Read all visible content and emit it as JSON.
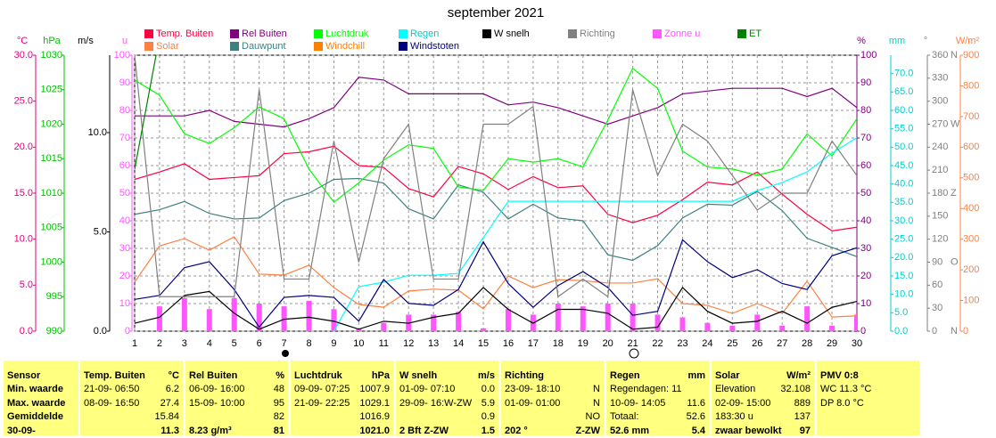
{
  "chart_data": {
    "type": "line",
    "title": "september 2021",
    "x": [
      1,
      2,
      3,
      4,
      5,
      6,
      7,
      8,
      9,
      10,
      11,
      12,
      13,
      14,
      15,
      16,
      17,
      18,
      19,
      20,
      21,
      22,
      23,
      24,
      25,
      26,
      27,
      28,
      29,
      30
    ],
    "xlim": [
      1,
      30
    ],
    "grid": true,
    "axes": {
      "temp": {
        "label": "°C",
        "color": "#e0007f",
        "lim": [
          0,
          30
        ],
        "ticks": [
          {
            "value": 0,
            "label": "0.0"
          },
          {
            "value": 5,
            "label": "5.0"
          },
          {
            "value": 10,
            "label": "10.0"
          },
          {
            "value": 15,
            "label": "15.0"
          },
          {
            "value": 20,
            "label": "20.0"
          },
          {
            "value": 25,
            "label": "25.0"
          },
          {
            "value": 30,
            "label": "30.0"
          }
        ]
      },
      "hpa": {
        "label": "hPa",
        "color": "#00c000",
        "lim": [
          990,
          1030
        ],
        "ticks": [
          990,
          995,
          1000,
          1005,
          1010,
          1015,
          1020,
          1025,
          1030
        ]
      },
      "ms": {
        "label": "m/s",
        "color": "#000000",
        "lim": [
          0,
          13.9
        ],
        "ticks": [
          {
            "value": 0,
            "label": "0.0"
          },
          {
            "value": 5,
            "label": "5.0"
          },
          {
            "value": 10,
            "label": "10.0"
          }
        ]
      },
      "u": {
        "label": "u",
        "color": "#ff55ff",
        "lim": [
          0,
          100
        ],
        "ticks": [
          0,
          10,
          20,
          30,
          40,
          50,
          60,
          70,
          80,
          90,
          100
        ]
      },
      "pct": {
        "label": "%",
        "color": "#800080",
        "lim": [
          0,
          100
        ],
        "ticks": [
          0,
          10,
          20,
          30,
          40,
          50,
          60,
          70,
          80,
          90,
          100
        ]
      },
      "mm": {
        "label": "mm",
        "color": "#00d0d0",
        "lim": [
          0,
          75
        ],
        "ticks": [
          {
            "value": 0,
            "label": "0.0"
          },
          {
            "value": 5,
            "label": "5.0"
          },
          {
            "value": 10,
            "label": "10.0"
          },
          {
            "value": 15,
            "label": "15.0"
          },
          {
            "value": 20,
            "label": "20.0"
          },
          {
            "value": 25,
            "label": "25.0"
          },
          {
            "value": 30,
            "label": "30.0"
          },
          {
            "value": 35,
            "label": "35.0"
          },
          {
            "value": 40,
            "label": "40.0"
          },
          {
            "value": 45,
            "label": "45.0"
          },
          {
            "value": 50,
            "label": "50.0"
          },
          {
            "value": 55,
            "label": "55.0"
          },
          {
            "value": 60,
            "label": "60.0"
          },
          {
            "value": 65,
            "label": "65.0"
          },
          {
            "value": 70,
            "label": "70.0"
          }
        ]
      },
      "deg": {
        "label": "°",
        "color": "#808080",
        "lim": [
          0,
          360
        ],
        "ticks": [
          0,
          30,
          60,
          90,
          120,
          150,
          180,
          210,
          240,
          270,
          300,
          330,
          360
        ],
        "compass": [
          {
            "value": 0,
            "label": "N"
          },
          {
            "value": 90,
            "label": "O"
          },
          {
            "value": 180,
            "label": "Z"
          },
          {
            "value": 270,
            "label": "W"
          },
          {
            "value": 360,
            "label": "N"
          }
        ]
      },
      "wm2": {
        "label": "W/m²",
        "color": "#ff8040",
        "lim": [
          0,
          900
        ],
        "ticks": [
          0,
          100,
          200,
          300,
          400,
          500,
          600,
          700,
          800,
          900
        ]
      }
    },
    "series": [
      {
        "name": "Zonne u",
        "color": "#ff55ff",
        "axis": "u",
        "kind": "bar",
        "values": [
          0,
          9,
          12,
          8,
          12,
          10,
          9,
          11,
          8,
          1,
          3,
          6,
          6,
          7,
          1,
          8,
          6,
          10,
          9,
          10,
          10,
          6,
          5,
          3,
          2,
          6,
          2,
          9,
          2,
          6
        ]
      },
      {
        "name": "Temp. Buiten",
        "color": "#ff0040",
        "axis": "temp",
        "kind": "line",
        "values": [
          16.5,
          17.3,
          18.2,
          16.5,
          16.7,
          16.9,
          19.3,
          19.5,
          20.1,
          18.0,
          17.8,
          15.5,
          14.6,
          17.9,
          17.1,
          15.4,
          16.8,
          15.6,
          15.8,
          12.7,
          11.8,
          12.6,
          14.3,
          16.2,
          15.9,
          17.3,
          14.9,
          12.7,
          10.9,
          11.3
        ]
      },
      {
        "name": "Solar",
        "color": "#ff8040",
        "axis": "wm2",
        "kind": "line",
        "values": [
          160,
          278,
          302,
          264,
          308,
          186,
          183,
          215,
          142,
          87,
          78,
          131,
          137,
          134,
          73,
          180,
          142,
          168,
          165,
          157,
          157,
          171,
          90,
          84,
          58,
          90,
          58,
          163,
          46,
          50
        ]
      },
      {
        "name": "Rel Buiten",
        "color": "#800080",
        "axis": "pct",
        "kind": "line",
        "values": [
          78,
          78,
          78,
          80,
          76,
          75,
          74,
          77,
          81,
          92,
          91,
          86,
          86,
          86,
          86,
          82,
          83,
          81,
          78,
          75,
          78,
          81,
          86,
          87,
          88,
          88,
          88,
          85,
          88,
          81
        ]
      },
      {
        "name": "Dauwpunt",
        "color": "#408080",
        "axis": "temp",
        "kind": "line",
        "values": [
          12.7,
          13.2,
          14.1,
          12.8,
          12.2,
          12.3,
          14.2,
          15.0,
          16.5,
          16.6,
          16.1,
          13.3,
          12.2,
          15.9,
          15.1,
          12.2,
          13.8,
          12.3,
          12.0,
          8.3,
          7.7,
          9.3,
          12.3,
          13.8,
          13.7,
          15.2,
          13.1,
          10.1,
          9.1,
          8.1
        ]
      },
      {
        "name": "Luchtdruk",
        "color": "#00ff00",
        "axis": "hpa",
        "kind": "line",
        "values": [
          1026.4,
          1024.2,
          1018.6,
          1017.2,
          1019.5,
          1022.5,
          1020.8,
          1013.5,
          1008.7,
          1011.5,
          1014.8,
          1017.0,
          1016.5,
          1010.9,
          1010.4,
          1015.0,
          1014.5,
          1015.0,
          1013.8,
          1020.6,
          1028.1,
          1025.2,
          1016.1,
          1013.8,
          1013.5,
          1012.6,
          1013.5,
          1018.6,
          1015.4,
          1020.8
        ]
      },
      {
        "name": "Windchill",
        "color": "#ff8000",
        "axis": "temp",
        "kind": "line",
        "values": [
          null,
          null,
          null,
          null,
          null,
          null,
          null,
          null,
          null,
          null,
          null,
          null,
          null,
          null,
          null,
          null,
          null,
          null,
          null,
          null,
          null,
          null,
          null,
          null,
          null,
          null,
          null,
          null,
          null,
          null
        ]
      },
      {
        "name": "Regen",
        "color": "#00ffff",
        "axis": "mm",
        "kind": "line",
        "values": [
          null,
          null,
          null,
          null,
          null,
          null,
          null,
          null,
          0,
          12.1,
          13.3,
          15.2,
          15.2,
          15.7,
          25.4,
          35.3,
          35.3,
          35.3,
          35.3,
          35.3,
          35.3,
          35.3,
          35.3,
          35.3,
          35.3,
          38.2,
          40.4,
          43.3,
          48.4,
          52.6
        ]
      },
      {
        "name": "Windstoten",
        "color": "#000080",
        "axis": "ms",
        "kind": "line",
        "values": [
          1.6,
          1.8,
          3.2,
          3.5,
          2.1,
          0.2,
          1.7,
          1.8,
          1.7,
          0.5,
          2.6,
          1.4,
          1.3,
          2.1,
          4.5,
          2.4,
          1.2,
          2.3,
          3.0,
          2.2,
          0.8,
          1.0,
          4.6,
          3.5,
          2.7,
          3.1,
          2.4,
          2.1,
          3.8,
          4.2
        ]
      },
      {
        "name": "W snelh",
        "color": "#000000",
        "axis": "ms",
        "kind": "line",
        "values": [
          0.4,
          0.7,
          1.8,
          2.0,
          0.9,
          0.1,
          0.6,
          0.7,
          0.5,
          0.1,
          0.5,
          0.4,
          0.7,
          0.9,
          2.2,
          1.1,
          0.4,
          1.1,
          1.1,
          0.9,
          0.1,
          0.2,
          2.2,
          1.0,
          0.4,
          0.5,
          1.0,
          0.4,
          1.2,
          1.5
        ]
      },
      {
        "name": "Richting",
        "color": "#808080",
        "axis": "deg",
        "kind": "line",
        "values": [
          360,
          45,
          45,
          45,
          45,
          315,
          68,
          68,
          248,
          90,
          225,
          270,
          68,
          68,
          270,
          270,
          293,
          45,
          68,
          45,
          315,
          203,
          270,
          248,
          203,
          158,
          180,
          180,
          248,
          203
        ]
      },
      {
        "name": "ET",
        "color": "#008000",
        "axis": "mm",
        "kind": "line",
        "values": [
          44,
          80,
          null,
          null,
          null,
          null,
          null,
          null,
          null,
          null,
          null,
          null,
          null,
          null,
          null,
          null,
          null,
          null,
          null,
          null,
          null,
          null,
          null,
          null,
          null,
          null,
          null,
          null,
          null,
          null
        ]
      }
    ]
  },
  "table": {
    "columns": [
      {
        "header": "Sensor",
        "rows": [
          [
            "Min. waarde",
            null
          ],
          [
            "Max. waarde",
            null
          ],
          [
            "Gemiddelde",
            null
          ],
          [
            "30-09-",
            null
          ]
        ]
      },
      {
        "header": "Temp. Buiten",
        "unit": "°C",
        "rows": [
          [
            "21-09- 06:50",
            "6.2"
          ],
          [
            "08-09- 16:50",
            "27.4"
          ],
          [
            null,
            "15.84"
          ],
          [
            null,
            "11.3"
          ]
        ]
      },
      {
        "header": "Rel Buiten",
        "unit": "%",
        "rows": [
          [
            "06-09- 16:00",
            "48"
          ],
          [
            "15-09- 10:00",
            "95"
          ],
          [
            null,
            "82"
          ],
          [
            "8.23 g/m³",
            "81"
          ]
        ]
      },
      {
        "header": "Luchtdruk",
        "unit": "hPa",
        "rows": [
          [
            "09-09- 07:25",
            "1007.9"
          ],
          [
            "21-09- 22:25",
            "1029.1"
          ],
          [
            null,
            "1016.9"
          ],
          [
            null,
            "1021.0"
          ]
        ]
      },
      {
        "header": "W snelh",
        "unit": "m/s",
        "rows": [
          [
            "01-09- 07:10",
            "0.0"
          ],
          [
            "29-09- 16:W-ZW",
            "5.9"
          ],
          [
            null,
            "0.9"
          ],
          [
            "2 Bft Z-ZW",
            "1.5"
          ]
        ]
      },
      {
        "header": "Richting",
        "rows": [
          [
            "23-09- 18:10",
            "N"
          ],
          [
            "01-09- 01:00",
            "N"
          ],
          [
            null,
            "NO"
          ],
          [
            "202 °",
            "Z-ZW"
          ]
        ]
      },
      {
        "header": "Regen",
        "unit": "mm",
        "rows": [
          [
            "Regendagen: 11",
            null
          ],
          [
            "10-09- 14:05",
            "11.6"
          ],
          [
            "Totaal:",
            "52.6"
          ],
          [
            "52.6 mm",
            "5.4"
          ]
        ]
      },
      {
        "header": "Solar",
        "unit": "W/m²",
        "rows": [
          [
            "Elevation",
            "32.108"
          ],
          [
            "02-09- 15:00",
            "889"
          ],
          [
            "183:30 u",
            "137"
          ],
          [
            "zwaar bewolkt",
            "97"
          ]
        ]
      },
      {
        "header": "PMV 0:8",
        "rows": [
          [
            "WC 11.3 °C",
            null
          ],
          [
            "DP 8.0 °C",
            null
          ]
        ]
      }
    ]
  }
}
